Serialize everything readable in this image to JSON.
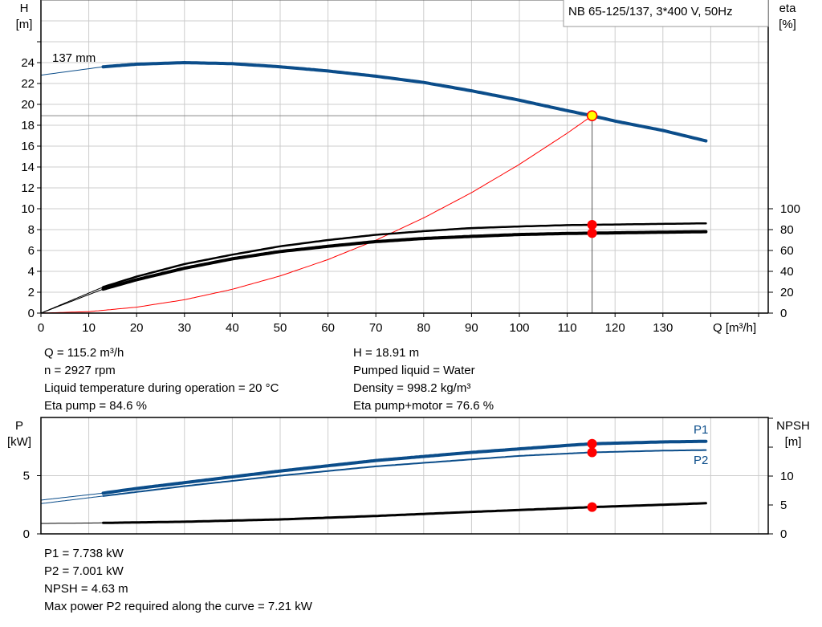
{
  "colors": {
    "head": "#0b4d8a",
    "eta": "#000000",
    "system": "#ff0000",
    "grid": "#cccccc",
    "duty_point_fill": "#ffff00",
    "marker": "#ff0000",
    "power": "#0b4d8a",
    "npsh": "#000000"
  },
  "chart_data": [
    {
      "type": "line",
      "title": "NB 65-125/137, 3*400 V, 50Hz",
      "xlabel": "Q [m³/h]",
      "ylabel": "H\n[m]",
      "y2label": "eta\n[%]",
      "xlim": [
        0,
        150
      ],
      "ylim": [
        0,
        30
      ],
      "y2lim": [
        0,
        300
      ],
      "xticks": [
        "0",
        "10",
        "20",
        "30",
        "40",
        "50",
        "60",
        "70",
        "80",
        "90",
        "100",
        "110",
        "120",
        "130"
      ],
      "yticks": [
        "0",
        "2",
        "4",
        "6",
        "8",
        "10",
        "12",
        "14",
        "16",
        "18",
        "20",
        "22",
        "24"
      ],
      "y2ticks": [
        "0",
        "20",
        "40",
        "60",
        "80",
        "100"
      ],
      "grid": true,
      "curve_label": "137 mm",
      "series": [
        {
          "key": "head",
          "axis": "left",
          "x": [
            0,
            13,
            20,
            30,
            40,
            50,
            60,
            70,
            80,
            90,
            100,
            110,
            115.2,
            120,
            130,
            139
          ],
          "y": [
            22.8,
            23.6,
            23.85,
            24.0,
            23.9,
            23.6,
            23.2,
            22.7,
            22.1,
            21.3,
            20.4,
            19.4,
            18.91,
            18.4,
            17.5,
            16.5
          ]
        },
        {
          "key": "eta_pump",
          "axis": "right",
          "x": [
            0,
            13,
            20,
            30,
            40,
            50,
            60,
            70,
            80,
            90,
            100,
            110,
            115.2,
            130,
            139
          ],
          "y": [
            0,
            25,
            35,
            47,
            56,
            64,
            70,
            75,
            78.5,
            81.5,
            83,
            84.3,
            84.6,
            85.5,
            86
          ]
        },
        {
          "key": "eta_pump_motor",
          "axis": "right",
          "x": [
            0,
            13,
            20,
            30,
            40,
            50,
            60,
            70,
            80,
            90,
            100,
            110,
            115.2,
            130,
            139
          ],
          "y": [
            0,
            23,
            32,
            43,
            52,
            59,
            64,
            68.5,
            71.5,
            73.5,
            75.3,
            76.3,
            76.6,
            77.5,
            78
          ]
        },
        {
          "key": "system",
          "axis": "left",
          "x": [
            0,
            10,
            20,
            30,
            40,
            50,
            60,
            70,
            80,
            90,
            100,
            110,
            115.2
          ],
          "y": [
            0,
            0.14,
            0.57,
            1.28,
            2.28,
            3.56,
            5.13,
            6.98,
            9.12,
            11.54,
            14.25,
            17.24,
            18.91
          ]
        }
      ],
      "duty_point": {
        "Q": 115.2,
        "H": 18.91,
        "eta_pump": 84.6,
        "eta_pump_motor": 76.6
      }
    },
    {
      "type": "line",
      "ylabel": "P\n[kW]",
      "y2label": "NPSH\n[m]",
      "xlim": [
        0,
        150
      ],
      "ylim": [
        0,
        10
      ],
      "y2lim": [
        0,
        20
      ],
      "yticks": [
        "0",
        "5"
      ],
      "y2ticks": [
        "0",
        "5",
        "10"
      ],
      "grid": true,
      "series": [
        {
          "key": "P1",
          "name": "P1",
          "axis": "left",
          "x": [
            0,
            13,
            20,
            30,
            40,
            50,
            60,
            70,
            80,
            90,
            100,
            110,
            115.2,
            130,
            139
          ],
          "y": [
            2.9,
            3.5,
            3.9,
            4.4,
            4.9,
            5.4,
            5.85,
            6.3,
            6.65,
            7.0,
            7.3,
            7.6,
            7.738,
            7.9,
            7.95
          ]
        },
        {
          "key": "P2",
          "name": "P2",
          "axis": "left",
          "x": [
            0,
            13,
            20,
            30,
            40,
            50,
            60,
            70,
            80,
            90,
            100,
            110,
            115.2,
            130,
            139
          ],
          "y": [
            2.6,
            3.25,
            3.6,
            4.1,
            4.55,
            5.0,
            5.4,
            5.8,
            6.1,
            6.4,
            6.7,
            6.9,
            7.001,
            7.15,
            7.2
          ]
        },
        {
          "key": "NPSH",
          "axis": "right",
          "x": [
            0,
            13,
            30,
            50,
            70,
            90,
            115.2,
            139
          ],
          "y": [
            1.8,
            1.9,
            2.1,
            2.5,
            3.1,
            3.8,
            4.63,
            5.3
          ]
        }
      ],
      "duty_point": {
        "Q": 115.2,
        "P1": 7.738,
        "P2": 7.001,
        "NPSH": 4.63
      }
    }
  ],
  "info_top": {
    "left": [
      "Q = 115.2 m³/h",
      "n = 2927 rpm",
      "Liquid temperature during operation = 20 °C",
      "Eta pump = 84.6 %"
    ],
    "right": [
      "H = 18.91 m",
      "Pumped liquid = Water",
      "Density = 998.2 kg/m³",
      "Eta pump+motor = 76.6 %"
    ]
  },
  "info_bottom": [
    "P1 = 7.738 kW",
    "P2 = 7.001 kW",
    "NPSH = 4.63 m",
    "Max power P2 required along the curve = 7.21 kW"
  ]
}
